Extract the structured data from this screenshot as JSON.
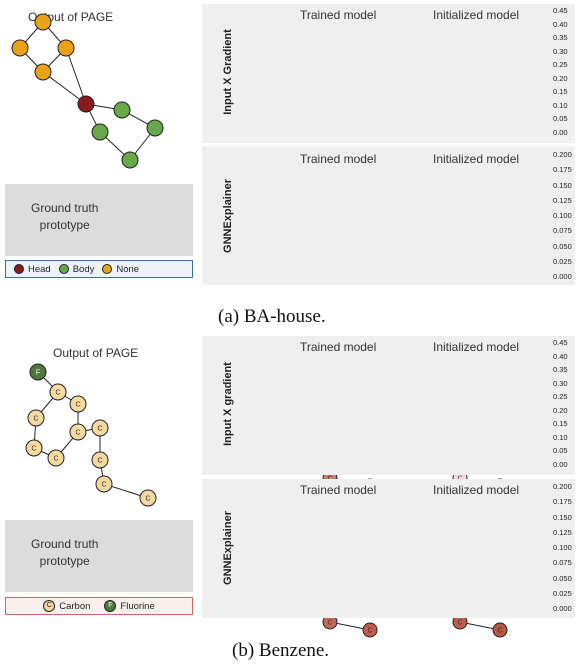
{
  "colors": {
    "head": "#8b1a1a",
    "body": "#66a84a",
    "none": "#e8a317",
    "carbon": "#f5d9a0",
    "fluorine": "#4f7a3a",
    "panel": "#efefef",
    "gt_panel": "#dcdcdc"
  },
  "ba_house": {
    "page_title": "Output of PAGE",
    "ground_truth": "Ground truth\nprototype",
    "legend": [
      {
        "label": "Head",
        "color": "#8b1a1a"
      },
      {
        "label": "Body",
        "color": "#66a84a"
      },
      {
        "label": "None",
        "color": "#e8a317"
      }
    ],
    "caption": "(a) BA-house.",
    "rows": [
      {
        "method": "Input X Gradient",
        "col_titles": [
          "Trained model",
          "Initialized model"
        ],
        "colorbar_ticks": [
          "0.45",
          "0.40",
          "0.35",
          "0.30",
          "0.25",
          "0.20",
          "0.15",
          "0.10",
          "0.05",
          "0.00"
        ]
      },
      {
        "method": "GNNExplainer",
        "col_titles": [
          "Trained model",
          "Initialized model"
        ],
        "colorbar_ticks": [
          "0.200",
          "0.175",
          "0.150",
          "0.125",
          "0.100",
          "0.075",
          "0.050",
          "0.025",
          "0.000"
        ]
      }
    ]
  },
  "benzene": {
    "page_title": "Output of PAGE",
    "ground_truth": "Ground truth\nprototype",
    "node_labels": {
      "carbon": "C",
      "fluorine": "F"
    },
    "legend": [
      {
        "label": "Carbon",
        "symbol": "C",
        "color": "#f5d9a0"
      },
      {
        "label": "Fluorine",
        "symbol": "F",
        "color": "#4f7a3a"
      }
    ],
    "caption": "(b) Benzene.",
    "rows": [
      {
        "method": "Input X gradient",
        "col_titles": [
          "Trained model",
          "Initialized model"
        ],
        "colorbar_ticks": [
          "0.45",
          "0.40",
          "0.35",
          "0.30",
          "0.25",
          "0.20",
          "0.15",
          "0.10",
          "0.05",
          "0.00"
        ]
      },
      {
        "method": "GNNExplainer",
        "col_titles": [
          "Trained model",
          "Initialized model"
        ],
        "colorbar_ticks": [
          "0.200",
          "0.175",
          "0.150",
          "0.125",
          "0.100",
          "0.075",
          "0.050",
          "0.025",
          "0.000"
        ]
      }
    ]
  }
}
